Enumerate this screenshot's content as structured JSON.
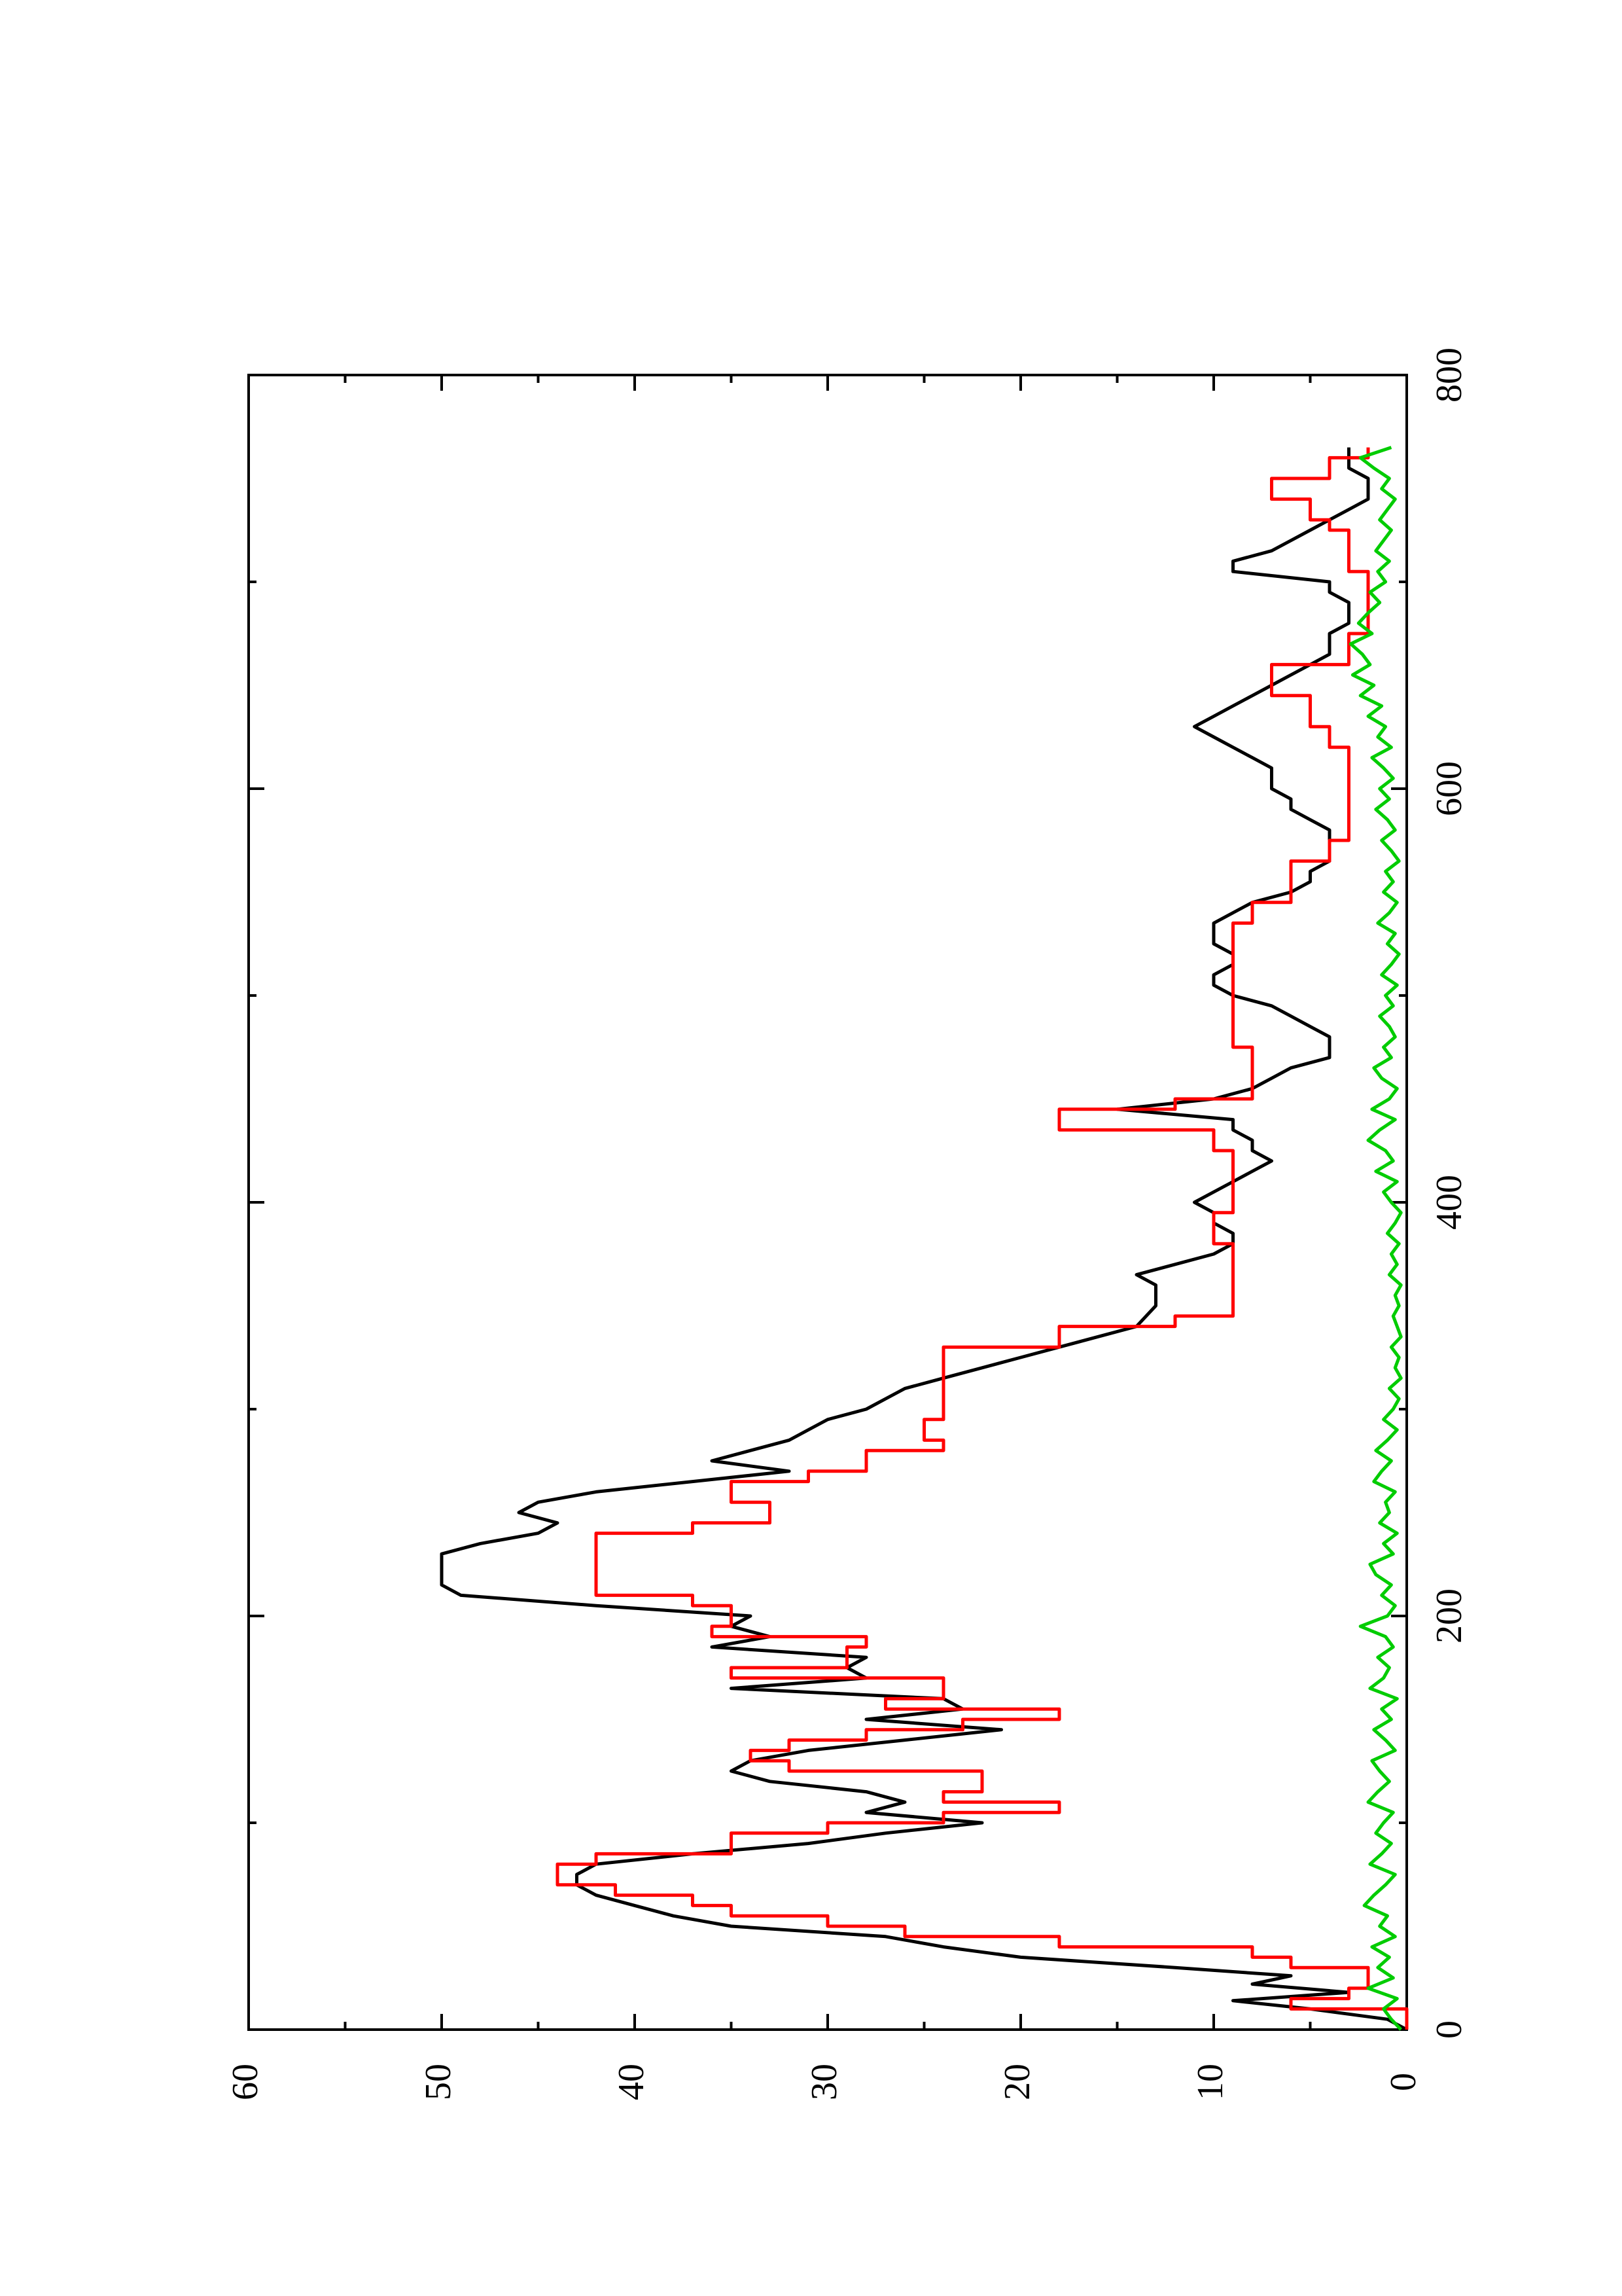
{
  "chart_data": {
    "type": "line",
    "title": "",
    "xlabel": "",
    "ylabel": "",
    "orientation": "rotated-90-ccw",
    "grid": false,
    "legend": "none",
    "xlim": [
      0,
      800
    ],
    "ylim": [
      0,
      60
    ],
    "x_ticks": [
      0,
      200,
      400,
      600,
      800
    ],
    "x_tick_labels": [
      "0",
      "200",
      "400",
      "600",
      "800"
    ],
    "y_ticks": [
      0,
      10,
      20,
      30,
      40,
      50,
      60
    ],
    "y_tick_labels": [
      "0",
      "10",
      "20",
      "30",
      "40",
      "50",
      "60"
    ],
    "series": [
      {
        "color": "#000000",
        "style": "line",
        "x": [
          0,
          5,
          10,
          14,
          18,
          22,
          26,
          30,
          35,
          40,
          45,
          50,
          55,
          60,
          65,
          70,
          75,
          80,
          85,
          90,
          95,
          100,
          105,
          110,
          115,
          120,
          125,
          130,
          135,
          140,
          145,
          150,
          155,
          160,
          165,
          170,
          175,
          180,
          185,
          190,
          195,
          200,
          205,
          210,
          215,
          220,
          225,
          230,
          235,
          240,
          245,
          250,
          255,
          260,
          265,
          270,
          275,
          280,
          285,
          290,
          295,
          300,
          305,
          310,
          315,
          320,
          325,
          330,
          340,
          350,
          360,
          365,
          370,
          375,
          380,
          385,
          390,
          395,
          400,
          405,
          410,
          415,
          420,
          425,
          430,
          435,
          440,
          445,
          450,
          455,
          460,
          465,
          470,
          475,
          480,
          485,
          490,
          495,
          500,
          505,
          510,
          515,
          520,
          525,
          530,
          535,
          540,
          545,
          550,
          555,
          560,
          565,
          570,
          575,
          580,
          585,
          590,
          595,
          600,
          605,
          610,
          615,
          620,
          625,
          630,
          635,
          640,
          645,
          650,
          655,
          660,
          665,
          670,
          675,
          680,
          685,
          690,
          695,
          700,
          705,
          710,
          715,
          720,
          725,
          730,
          735,
          740,
          745,
          750,
          755,
          760,
          765
        ],
        "y": [
          0,
          1,
          5,
          9,
          3,
          8,
          6,
          12,
          20,
          24,
          27,
          35,
          38,
          40,
          42,
          43,
          43,
          42,
          37,
          31,
          27,
          22,
          28,
          26,
          28,
          33,
          35,
          34,
          31,
          26,
          21,
          28,
          23,
          24,
          35,
          28,
          29,
          28,
          36,
          33,
          35,
          34,
          42,
          49,
          50,
          50,
          50,
          50,
          48,
          45,
          44,
          46,
          45,
          42,
          37,
          32,
          36,
          34,
          32,
          31,
          30,
          28,
          27,
          26,
          24,
          22,
          20,
          18,
          14,
          13,
          13,
          14,
          12,
          10,
          9,
          9,
          10,
          10,
          11,
          10,
          9,
          8,
          7,
          8,
          8,
          9,
          9,
          15,
          10,
          8,
          7,
          6,
          4,
          4,
          4,
          5,
          6,
          7,
          9,
          10,
          10,
          9,
          9,
          10,
          10,
          10,
          9,
          8,
          6,
          5,
          5,
          4,
          4,
          4,
          4,
          5,
          6,
          6,
          7,
          7,
          7,
          8,
          9,
          10,
          11,
          10,
          9,
          8,
          7,
          6,
          5,
          4,
          4,
          4,
          3,
          3,
          3,
          4,
          4,
          9,
          9,
          7,
          6,
          5,
          4,
          3,
          2,
          2,
          2,
          3,
          3,
          3
        ]
      },
      {
        "color": "#ff0000",
        "style": "step",
        "x": [
          0,
          5,
          10,
          15,
          20,
          25,
          30,
          35,
          40,
          45,
          50,
          55,
          60,
          65,
          70,
          75,
          80,
          85,
          90,
          95,
          100,
          105,
          110,
          115,
          120,
          125,
          130,
          135,
          140,
          145,
          150,
          155,
          160,
          165,
          170,
          175,
          180,
          185,
          190,
          195,
          200,
          205,
          210,
          215,
          220,
          225,
          230,
          235,
          240,
          245,
          250,
          255,
          260,
          265,
          270,
          275,
          280,
          285,
          290,
          295,
          300,
          305,
          310,
          315,
          320,
          325,
          330,
          335,
          340,
          345,
          350,
          355,
          360,
          365,
          370,
          375,
          380,
          385,
          390,
          395,
          400,
          405,
          410,
          415,
          420,
          425,
          430,
          435,
          440,
          445,
          450,
          455,
          460,
          465,
          470,
          475,
          480,
          485,
          490,
          495,
          500,
          505,
          510,
          515,
          520,
          525,
          530,
          535,
          540,
          545,
          550,
          555,
          560,
          565,
          570,
          575,
          580,
          585,
          590,
          595,
          600,
          605,
          610,
          615,
          620,
          625,
          630,
          635,
          640,
          645,
          650,
          655,
          660,
          665,
          670,
          675,
          680,
          685,
          690,
          695,
          700,
          705,
          710,
          715,
          720,
          725,
          730,
          735,
          740,
          745,
          750,
          755,
          760,
          765
        ],
        "y": [
          0,
          0,
          6,
          3,
          2,
          2,
          6,
          8,
          18,
          26,
          30,
          35,
          37,
          41,
          44,
          44,
          42,
          35,
          35,
          30,
          24,
          18,
          24,
          22,
          22,
          32,
          34,
          32,
          28,
          23,
          18,
          27,
          24,
          24,
          35,
          29,
          29,
          28,
          36,
          35,
          35,
          37,
          42,
          42,
          42,
          42,
          42,
          42,
          37,
          33,
          33,
          35,
          35,
          31,
          28,
          28,
          24,
          25,
          25,
          24,
          24,
          24,
          24,
          24,
          24,
          24,
          18,
          18,
          12,
          9,
          9,
          9,
          9,
          9,
          9,
          9,
          10,
          10,
          10,
          9,
          9,
          9,
          9,
          9,
          9,
          10,
          10,
          18,
          18,
          12,
          8,
          8,
          8,
          8,
          8,
          9,
          9,
          9,
          9,
          9,
          9,
          9,
          9,
          9,
          9,
          9,
          9,
          8,
          8,
          6,
          6,
          6,
          6,
          4,
          4,
          3,
          3,
          3,
          3,
          3,
          3,
          3,
          3,
          3,
          4,
          4,
          5,
          5,
          5,
          7,
          7,
          7,
          3,
          3,
          3,
          2,
          2,
          2,
          2,
          2,
          2,
          3,
          3,
          3,
          3,
          4,
          5,
          5,
          7,
          7,
          4,
          4,
          2,
          2
        ]
      },
      {
        "color": "#00cc00",
        "style": "line",
        "x": [
          0,
          5,
          10,
          15,
          20,
          25,
          30,
          35,
          40,
          45,
          50,
          55,
          60,
          65,
          70,
          75,
          80,
          85,
          90,
          95,
          100,
          105,
          110,
          115,
          120,
          125,
          130,
          135,
          140,
          145,
          150,
          155,
          160,
          165,
          170,
          175,
          180,
          185,
          190,
          195,
          200,
          205,
          210,
          215,
          220,
          225,
          230,
          235,
          240,
          245,
          250,
          255,
          260,
          265,
          270,
          275,
          280,
          285,
          290,
          295,
          300,
          305,
          310,
          315,
          320,
          325,
          330,
          335,
          340,
          345,
          350,
          355,
          360,
          365,
          370,
          375,
          380,
          385,
          390,
          395,
          400,
          405,
          410,
          415,
          420,
          425,
          430,
          435,
          440,
          445,
          450,
          455,
          460,
          465,
          470,
          475,
          480,
          485,
          490,
          495,
          500,
          505,
          510,
          515,
          520,
          525,
          530,
          535,
          540,
          545,
          550,
          555,
          560,
          565,
          570,
          575,
          580,
          585,
          590,
          595,
          600,
          605,
          610,
          615,
          620,
          625,
          630,
          635,
          640,
          645,
          650,
          655,
          660,
          665,
          670,
          675,
          680,
          685,
          690,
          695,
          700,
          705,
          710,
          715,
          720,
          725,
          730,
          735,
          740,
          745,
          750,
          755,
          760,
          765
        ],
        "y": [
          0.3,
          0.8,
          1.2,
          0.5,
          2.0,
          0.7,
          1.5,
          0.9,
          1.8,
          0.6,
          1.4,
          1.0,
          2.2,
          1.7,
          1.1,
          0.6,
          1.9,
          1.3,
          0.8,
          1.6,
          1.2,
          0.7,
          2.0,
          1.5,
          0.9,
          1.4,
          1.8,
          0.6,
          1.1,
          1.7,
          0.8,
          1.3,
          0.5,
          1.9,
          1.2,
          0.9,
          1.5,
          0.7,
          1.1,
          2.4,
          1.0,
          0.6,
          1.3,
          0.8,
          1.6,
          1.9,
          0.7,
          1.2,
          0.5,
          1.4,
          0.9,
          1.1,
          0.6,
          1.7,
          1.3,
          0.8,
          1.6,
          1.0,
          0.5,
          1.2,
          0.7,
          0.4,
          0.9,
          0.3,
          0.6,
          0.4,
          0.8,
          0.3,
          0.5,
          0.7,
          0.4,
          0.6,
          0.3,
          0.9,
          0.5,
          0.8,
          0.4,
          1.0,
          0.6,
          0.3,
          0.8,
          1.2,
          0.5,
          1.6,
          0.7,
          1.1,
          2.0,
          1.4,
          0.6,
          1.8,
          0.9,
          0.5,
          1.3,
          1.7,
          0.8,
          1.2,
          0.6,
          0.9,
          1.4,
          0.7,
          1.1,
          0.5,
          1.3,
          0.8,
          0.4,
          1.0,
          0.6,
          1.5,
          0.9,
          0.5,
          1.2,
          0.7,
          1.1,
          0.4,
          0.8,
          1.3,
          0.6,
          1.0,
          1.6,
          0.9,
          1.4,
          0.7,
          1.2,
          1.8,
          0.8,
          1.5,
          1.1,
          2.0,
          1.3,
          2.4,
          1.7,
          2.8,
          1.9,
          2.3,
          2.9,
          1.8,
          2.5,
          2.0,
          1.4,
          1.9,
          1.1,
          1.5,
          0.9,
          1.6,
          1.2,
          0.8,
          1.4,
          1.0,
          0.6,
          1.3,
          0.9,
          1.7,
          2.4,
          0.8
        ]
      }
    ]
  }
}
